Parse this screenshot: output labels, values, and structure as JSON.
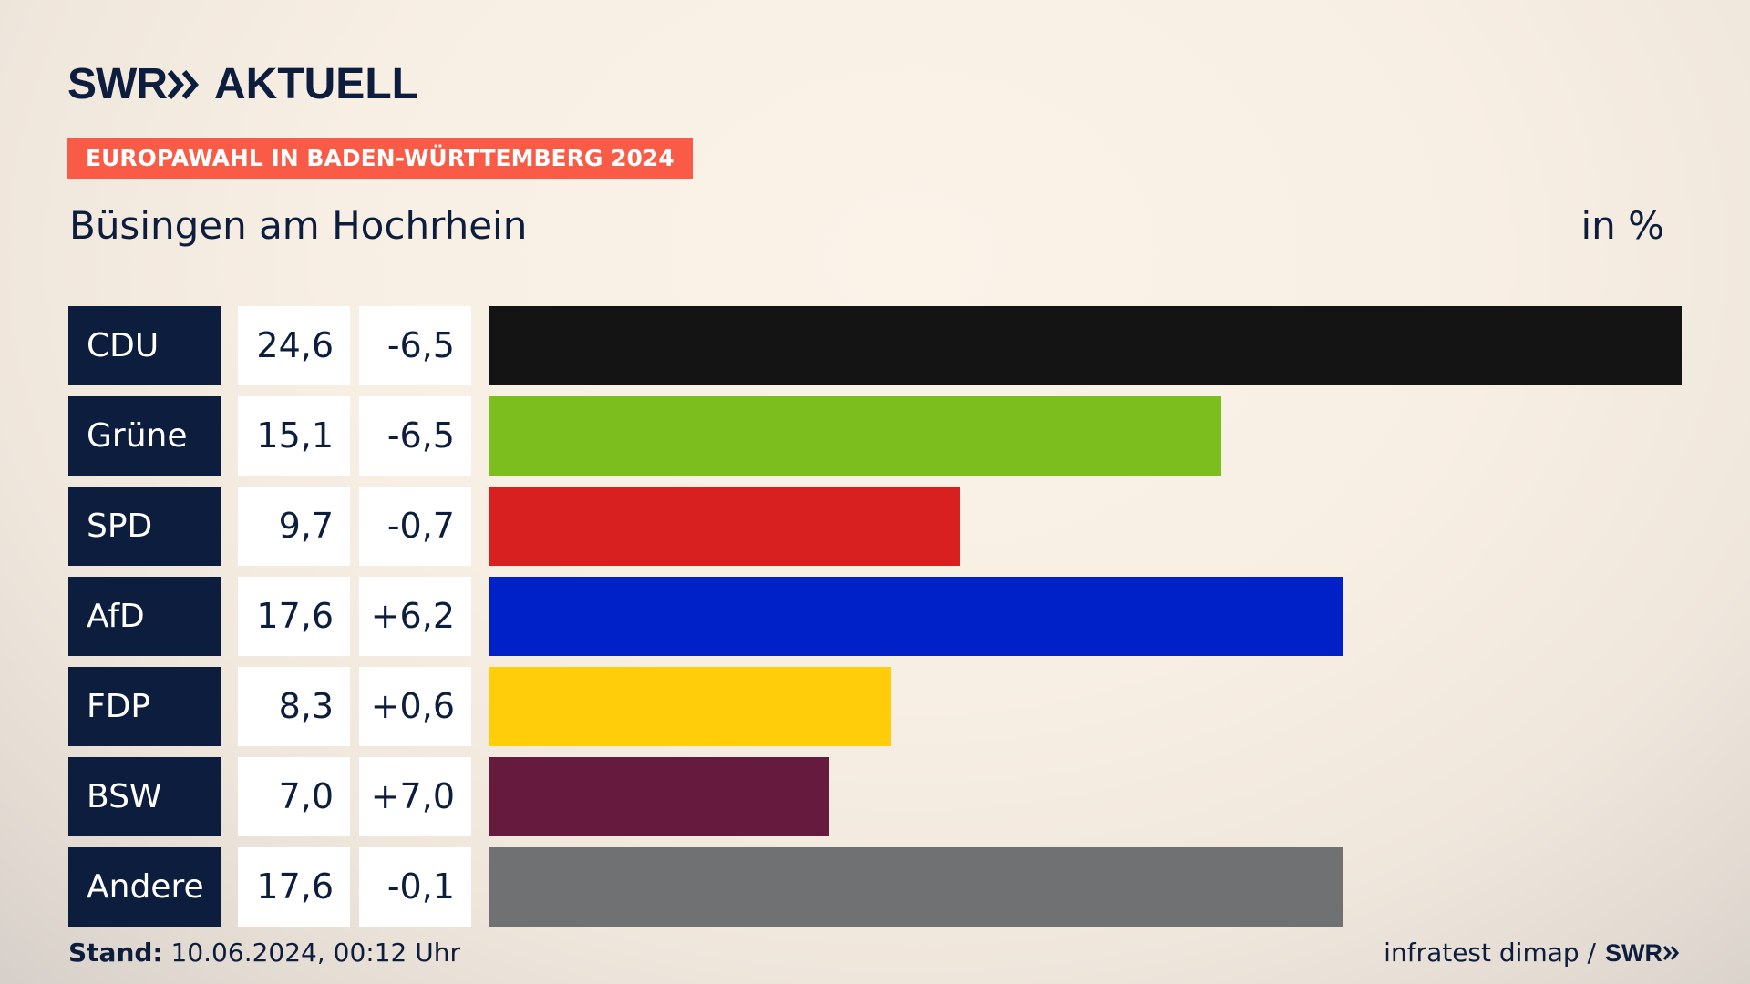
{
  "header": {
    "logo_swr": "SWR",
    "logo_aktuell": "AKTUELL",
    "banner": "EUROPAWAHL IN BADEN-WÜRTTEMBERG 2024",
    "location": "Büsingen am Hochrhein",
    "unit": "in %"
  },
  "chart_data": {
    "type": "bar",
    "orientation": "horizontal",
    "title": "Büsingen am Hochrhein",
    "unit": "in %",
    "categories": [
      "CDU",
      "Grüne",
      "SPD",
      "AfD",
      "FDP",
      "BSW",
      "Andere"
    ],
    "values": [
      24.6,
      15.1,
      9.7,
      17.6,
      8.3,
      7.0,
      17.6
    ],
    "value_labels": [
      "24,6",
      "15,1",
      "9,7",
      "17,6",
      "8,3",
      "7,0",
      "17,6"
    ],
    "changes": [
      -6.5,
      -6.5,
      -0.7,
      6.2,
      0.6,
      7.0,
      -0.1
    ],
    "change_labels": [
      "-6,5",
      "-6,5",
      "-0,7",
      "+6,2",
      "+0,6",
      "+7,0",
      "-0,1"
    ],
    "colors": [
      "#141414",
      "#7bbe1e",
      "#d7201f",
      "#0020c8",
      "#ffcd0a",
      "#661a3e",
      "#707172"
    ],
    "xlim": [
      0,
      24.6
    ]
  },
  "footer": {
    "stand_label": "Stand:",
    "stand_value": "10.06.2024, 00:12 Uhr",
    "source": "infratest dimap /",
    "source_logo": "SWR"
  },
  "colors": {
    "navy": "#0c1d3d",
    "banner": "#fa5b46"
  }
}
